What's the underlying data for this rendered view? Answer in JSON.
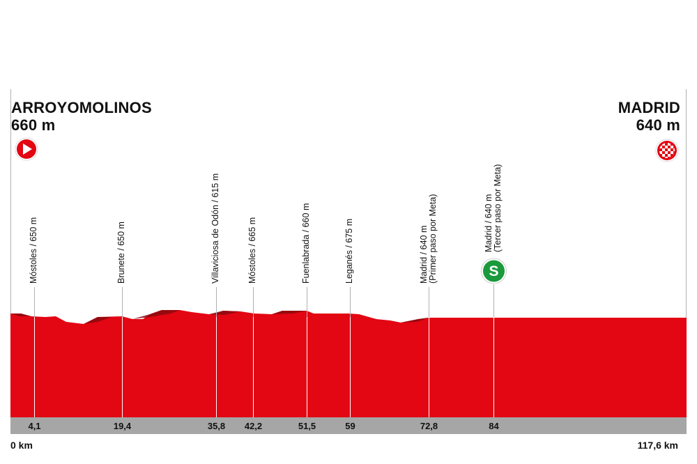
{
  "start": {
    "name": "ARROYOMOLINOS",
    "altitude": "660 m",
    "icon": "start-arrow-icon",
    "color": "#e30613"
  },
  "finish": {
    "name": "MADRID",
    "altitude": "640 m",
    "icon": "checkered-flag-icon",
    "color": "#e30613"
  },
  "waypoints": [
    {
      "label": "Móstoles / 650 m",
      "km": "4,1",
      "km_value": 4.1
    },
    {
      "label": "Brunete / 650 m",
      "km": "19,4",
      "km_value": 19.4
    },
    {
      "label": "Villaviciosa de Odón / 615 m",
      "km": "35,8",
      "km_value": 35.8
    },
    {
      "label": "Móstoles / 665 m",
      "km": "42,2",
      "km_value": 42.2
    },
    {
      "label": "Fuenlabrada / 660 m",
      "km": "51,5",
      "km_value": 51.5
    },
    {
      "label": "Leganés / 675 m",
      "km": "59",
      "km_value": 59
    },
    {
      "label": "Madrid / 640 m\n(Primer paso por Meta)",
      "km": "72,8",
      "km_value": 72.8
    },
    {
      "label": "Madrid / 640 m\n(Tercer paso por Meta)",
      "km": "84",
      "km_value": 84,
      "sprint": true,
      "sprint_letter": "S"
    }
  ],
  "distance": {
    "start": "0 km",
    "end": "117,6 km",
    "total": 117.6
  },
  "colors": {
    "profile": "#e30613",
    "profile_dark": "#8a0a0f",
    "km_bar": "#a6a6a6",
    "sprint": "#1a9a3c"
  }
}
